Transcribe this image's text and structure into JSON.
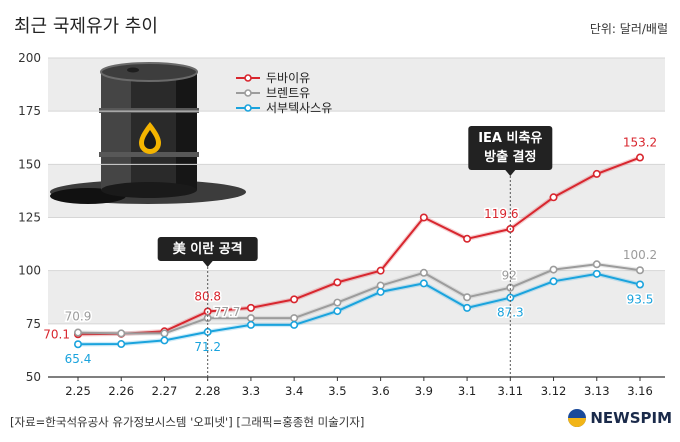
{
  "title": "최근 국제유가 추이",
  "unit": "단위: 달러/배럴",
  "source": "[자료=한국석유공사 유가정보시스템 '오피넷'] [그래픽=홍종현 미술기자]",
  "brand": "NEWSPIM",
  "colors": {
    "dubai": "#d8262e",
    "brent": "#9c9c9c",
    "wti": "#1aa3dd",
    "band": "#ececec",
    "callout": "#222222"
  },
  "callouts": [
    {
      "text": "美 이란 공격",
      "at": "2.28"
    },
    {
      "text": "IEA 비축유\n방출 결정",
      "at": "3.11"
    }
  ],
  "chart_data": {
    "type": "line",
    "categories": [
      "2.25",
      "2.26",
      "2.27",
      "2.28",
      "3.3",
      "3.4",
      "3.5",
      "3.6",
      "3.9",
      "3.1",
      "3.11",
      "3.12",
      "3.13",
      "3.16"
    ],
    "ylim": [
      50,
      200
    ],
    "yticks": [
      50,
      75,
      100,
      125,
      150,
      175,
      200
    ],
    "series": [
      {
        "name": "두바이유",
        "key": "dubai",
        "values": [
          70.1,
          70.3,
          71.5,
          80.8,
          82.5,
          86.5,
          94.5,
          100,
          125,
          115,
          119.6,
          134.5,
          145.5,
          153.2
        ]
      },
      {
        "name": "브렌트유",
        "key": "brent",
        "values": [
          70.9,
          70.5,
          70.5,
          77.7,
          77.7,
          77.7,
          85,
          93,
          99,
          87.5,
          92,
          100.5,
          103,
          100.2
        ]
      },
      {
        "name": "서부텍사스유",
        "key": "wti",
        "values": [
          65.4,
          65.5,
          67.2,
          71.2,
          74.5,
          74.5,
          81,
          90,
          94,
          82.5,
          87.3,
          95,
          98.5,
          93.5
        ]
      }
    ],
    "data_labels": [
      {
        "series": "dubai",
        "index": 0,
        "text": "70.1"
      },
      {
        "series": "dubai",
        "index": 3,
        "text": "80.8"
      },
      {
        "series": "dubai",
        "index": 10,
        "text": "119.6"
      },
      {
        "series": "dubai",
        "index": 13,
        "text": "153.2"
      },
      {
        "series": "brent",
        "index": 0,
        "text": "70.9"
      },
      {
        "series": "brent",
        "index": 3,
        "text": "77.7"
      },
      {
        "series": "brent",
        "index": 10,
        "text": "92"
      },
      {
        "series": "brent",
        "index": 13,
        "text": "100.2"
      },
      {
        "series": "wti",
        "index": 0,
        "text": "65.4"
      },
      {
        "series": "wti",
        "index": 3,
        "text": "71.2"
      },
      {
        "series": "wti",
        "index": 10,
        "text": "87.3"
      },
      {
        "series": "wti",
        "index": 13,
        "text": "93.5"
      }
    ]
  }
}
